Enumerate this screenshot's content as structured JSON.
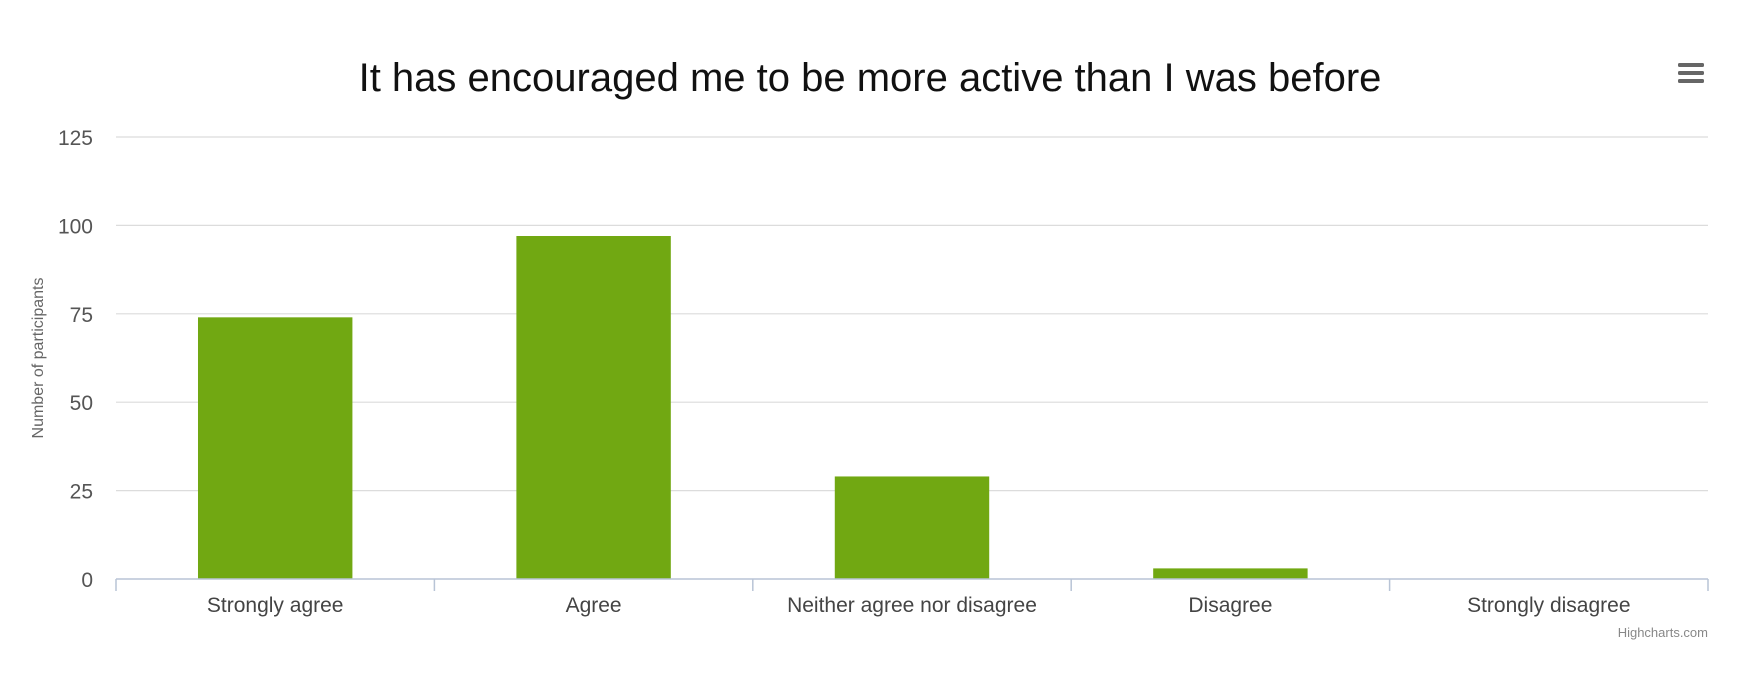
{
  "colors": {
    "bar": "#71a812",
    "menu": "#666666"
  },
  "icons": {
    "menu": "hamburger-menu-icon"
  },
  "credits": "Highcharts.com",
  "chart_data": {
    "type": "bar",
    "title": "It has encouraged me to be more active than I was before",
    "xlabel": "",
    "ylabel": "Number of participants",
    "categories": [
      "Strongly agree",
      "Agree",
      "Neither agree nor disagree",
      "Disagree",
      "Strongly disagree"
    ],
    "values": [
      74,
      97,
      29,
      3,
      0
    ],
    "ylim": [
      0,
      125
    ],
    "yticks": [
      0,
      25,
      50,
      75,
      100,
      125
    ],
    "grid": true,
    "legend": "none"
  }
}
